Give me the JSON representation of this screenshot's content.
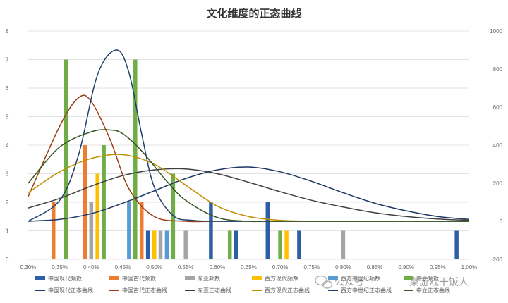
{
  "chart_data": {
    "type": "bar",
    "title": "文化维度的正态曲线",
    "categories": [
      "0.30%",
      "0.35%",
      "0.40%",
      "0.45%",
      "0.50%",
      "0.55%",
      "0.60%",
      "0.65%",
      "0.70%",
      "0.75%",
      "0.80%",
      "0.85%",
      "0.90%",
      "0.95%",
      "1.00%"
    ],
    "x_range": [
      0.3,
      1.0
    ],
    "ylim": [
      0,
      8
    ],
    "y_ticks": [
      0,
      1,
      2,
      3,
      4,
      5,
      6,
      7,
      8
    ],
    "y2lim": [
      -200,
      1000
    ],
    "y2_ticks": [
      -200,
      0,
      200,
      400,
      600,
      800,
      1000
    ],
    "grid": true,
    "legend_position": "bottom",
    "bar_series": [
      {
        "name": "中国现代频数",
        "color": "#2e5ea8",
        "points": [
          [
            0.41,
            1
          ],
          [
            0.49,
            1
          ],
          [
            0.59,
            2
          ],
          [
            0.63,
            1
          ],
          [
            0.68,
            2
          ],
          [
            0.73,
            1
          ],
          [
            0.98,
            1
          ]
        ]
      },
      {
        "name": "中国古代频数",
        "color": "#ed7d31",
        "points": [
          [
            0.34,
            2
          ],
          [
            0.39,
            4
          ],
          [
            0.48,
            2
          ],
          [
            0.5,
            1
          ]
        ]
      },
      {
        "name": "东亚频数",
        "color": "#a5a5a5",
        "points": [
          [
            0.4,
            2
          ],
          [
            0.51,
            1
          ],
          [
            0.55,
            1
          ],
          [
            0.7,
            1
          ],
          [
            0.8,
            1
          ]
        ]
      },
      {
        "name": "西方现代频数",
        "color": "#ffc000",
        "points": [
          [
            0.41,
            3
          ],
          [
            0.47,
            1
          ],
          [
            0.5,
            1
          ],
          [
            0.71,
            1
          ]
        ]
      },
      {
        "name": "西方中世纪频数",
        "color": "#5b9bd5",
        "points": [
          [
            0.46,
            2
          ],
          [
            0.52,
            1
          ]
        ]
      },
      {
        "name": "中立频数",
        "color": "#70ad47",
        "points": [
          [
            0.36,
            7
          ],
          [
            0.42,
            4
          ],
          [
            0.47,
            7
          ],
          [
            0.53,
            3
          ],
          [
            0.62,
            1
          ],
          [
            0.7,
            1
          ]
        ]
      }
    ],
    "curve_series": [
      {
        "name": "中国现代正态曲线",
        "color": "#1f3864",
        "x": [
          0.3,
          0.35,
          0.4,
          0.45,
          0.5,
          0.55,
          0.6,
          0.65,
          0.7,
          0.75,
          0.8,
          0.85,
          0.9,
          0.95,
          1.0
        ],
        "y": [
          0,
          10,
          40,
          95,
          160,
          225,
          270,
          285,
          260,
          210,
          150,
          95,
          55,
          25,
          10
        ]
      },
      {
        "name": "中国古代正态曲线",
        "color": "#9c3d10",
        "x": [
          0.3,
          0.35,
          0.38,
          0.4,
          0.43,
          0.46,
          0.5,
          0.55,
          0.6,
          0.65,
          0.7,
          1.0
        ],
        "y": [
          130,
          500,
          650,
          630,
          430,
          170,
          25,
          0,
          0,
          0,
          0,
          0
        ]
      },
      {
        "name": "东亚正态曲线",
        "color": "#404040",
        "x": [
          0.3,
          0.35,
          0.4,
          0.45,
          0.5,
          0.55,
          0.6,
          0.65,
          0.7,
          0.75,
          0.8,
          0.85,
          0.9,
          0.95,
          1.0
        ],
        "y": [
          70,
          120,
          185,
          240,
          270,
          275,
          250,
          205,
          155,
          110,
          75,
          45,
          25,
          12,
          5
        ]
      },
      {
        "name": "西方现代正态曲线",
        "color": "#bf8f00",
        "x": [
          0.3,
          0.35,
          0.4,
          0.45,
          0.5,
          0.55,
          0.6,
          0.65,
          0.7,
          0.75,
          0.8,
          1.0
        ],
        "y": [
          150,
          260,
          330,
          350,
          300,
          190,
          80,
          25,
          5,
          0,
          0,
          0
        ]
      },
      {
        "name": "西方中世纪正态曲线",
        "color": "#1f3f6e",
        "x": [
          0.3,
          0.35,
          0.38,
          0.41,
          0.44,
          0.46,
          0.48,
          0.5,
          0.53,
          0.56,
          0.6,
          0.7,
          1.0
        ],
        "y": [
          0,
          110,
          350,
          770,
          900,
          780,
          460,
          180,
          30,
          5,
          0,
          0,
          0
        ]
      },
      {
        "name": "中立正态曲线",
        "color": "#375623",
        "x": [
          0.3,
          0.35,
          0.4,
          0.43,
          0.45,
          0.48,
          0.52,
          0.55,
          0.6,
          0.65,
          0.7,
          1.0
        ],
        "y": [
          200,
          390,
          470,
          480,
          460,
          370,
          210,
          110,
          20,
          0,
          0,
          0
        ]
      }
    ],
    "legend": [
      {
        "name": "中国现代频数",
        "kind": "bar",
        "color": "#2e5ea8"
      },
      {
        "name": "中国古代频数",
        "kind": "bar",
        "color": "#ed7d31"
      },
      {
        "name": "东亚频数",
        "kind": "bar",
        "color": "#a5a5a5"
      },
      {
        "name": "西方现代频数",
        "kind": "bar",
        "color": "#ffc000"
      },
      {
        "name": "西方中世纪频数",
        "kind": "bar",
        "color": "#5b9bd5"
      },
      {
        "name": "中立频数",
        "kind": "bar",
        "color": "#70ad47"
      },
      {
        "name": "中国现代正态曲线",
        "kind": "line",
        "color": "#1f3864"
      },
      {
        "name": "中国古代正态曲线",
        "kind": "line",
        "color": "#9c3d10"
      },
      {
        "name": "东亚正态曲线",
        "kind": "line",
        "color": "#404040"
      },
      {
        "name": "西方现代正态曲线",
        "kind": "line",
        "color": "#bf8f00"
      },
      {
        "name": "西方中世纪正态曲线",
        "kind": "line",
        "color": "#1f3f6e"
      },
      {
        "name": "中立正态曲线",
        "kind": "line",
        "color": "#375623"
      }
    ]
  },
  "watermark": {
    "account_label": "公众号",
    "account_name": "桌游戏干饭人",
    "icon": "wechat-icon"
  }
}
